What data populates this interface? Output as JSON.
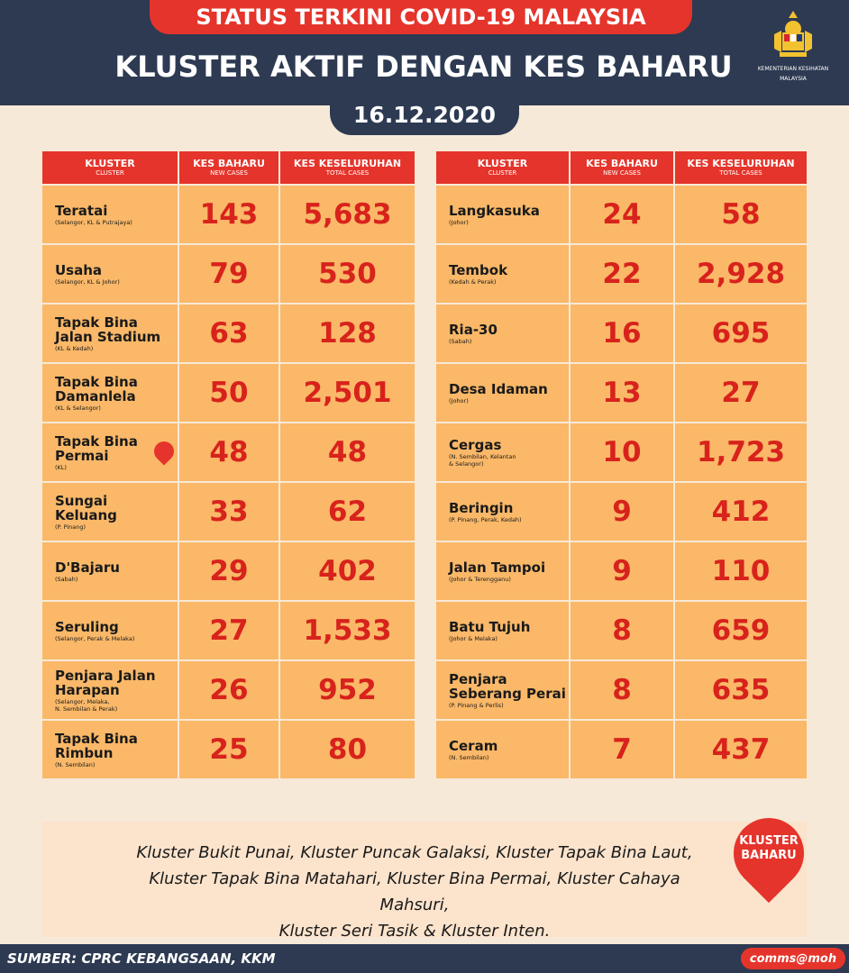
{
  "header": {
    "banner": "STATUS TERKINI COVID-19 MALAYSIA",
    "title": "KLUSTER AKTIF DENGAN KES BAHARU",
    "date": "16.12.2020",
    "logo_text_1": "KEMENTERIAN KESIHATAN",
    "logo_text_2": "MALAYSIA"
  },
  "columns": {
    "cluster": "KLUSTER",
    "cluster_sub": "CLUSTER",
    "new": "KES BAHARU",
    "new_sub": "NEW CASES",
    "total": "KES KESELURUHAN",
    "total_sub": "TOTAL CASES"
  },
  "left_rows": [
    {
      "name": "Teratai",
      "loc": "(Selangor, KL & Putrajaya)",
      "new": "143",
      "total": "5,683"
    },
    {
      "name": "Usaha",
      "loc": "(Selangor, KL & Johor)",
      "new": "79",
      "total": "530"
    },
    {
      "name": "Tapak Bina\nJalan Stadium",
      "loc": "(KL & Kedah)",
      "new": "63",
      "total": "128"
    },
    {
      "name": "Tapak Bina\nDamanlela",
      "loc": "(KL & Selangor)",
      "new": "50",
      "total": "2,501"
    },
    {
      "name": "Tapak  Bina\nPermai",
      "loc": "(KL)",
      "new": "48",
      "total": "48",
      "badge": true
    },
    {
      "name": "Sungai\nKeluang",
      "loc": "(P. Pinang)",
      "new": "33",
      "total": "62"
    },
    {
      "name": "D'Bajaru",
      "loc": "(Sabah)",
      "new": "29",
      "total": "402"
    },
    {
      "name": "Seruling",
      "loc": "(Selangor, Perak & Melaka)",
      "new": "27",
      "total": "1,533"
    },
    {
      "name": "Penjara Jalan\nHarapan",
      "loc": "(Selangor, Melaka,\nN. Sembilan & Perak)",
      "new": "26",
      "total": "952"
    },
    {
      "name": "Tapak Bina\nRimbun",
      "loc": "(N. Sembilan)",
      "new": "25",
      "total": "80"
    }
  ],
  "right_rows": [
    {
      "name": "Langkasuka",
      "loc": "(Johor)",
      "new": "24",
      "total": "58"
    },
    {
      "name": "Tembok",
      "loc": "(Kedah & Perak)",
      "new": "22",
      "total": "2,928"
    },
    {
      "name": "Ria-30",
      "loc": "(Sabah)",
      "new": "16",
      "total": "695"
    },
    {
      "name": "Desa Idaman",
      "loc": "(Johor)",
      "new": "13",
      "total": "27"
    },
    {
      "name": "Cergas",
      "loc": "(N. Sembilan, Kelantan\n& Selangor)",
      "new": "10",
      "total": "1,723"
    },
    {
      "name": "Beringin",
      "loc": "(P. Pinang, Perak, Kedah)",
      "new": "9",
      "total": "412"
    },
    {
      "name": "Jalan Tampoi",
      "loc": "(Johor & Terengganu)",
      "new": "9",
      "total": "110"
    },
    {
      "name": "Batu Tujuh",
      "loc": "(Johor & Melaka)",
      "new": "8",
      "total": "659"
    },
    {
      "name": "Penjara\nSeberang Perai",
      "loc": "(P. Pinang & Perlis)",
      "new": "8",
      "total": "635"
    },
    {
      "name": "Ceram",
      "loc": "(N. Sembilan)",
      "new": "7",
      "total": "437"
    }
  ],
  "note": {
    "line1": "Kluster Bukit Punai, Kluster Puncak Galaksi, Kluster Tapak Bina Laut,",
    "line2": "Kluster Tapak Bina Matahari, Kluster Bina Permai, Kluster Cahaya Mahsuri,",
    "line3": "Kluster Seri Tasik & Kluster Inten.",
    "badge_line1": "KLUSTER",
    "badge_line2": "BAHARU"
  },
  "footer": {
    "source": "SUMBER: CPRC KEBANGSAAN, KKM",
    "handle": "comms@moh"
  },
  "colors": {
    "navy": "#2d3a52",
    "red": "#e5342b",
    "cell_orange": "#fab868",
    "background": "#f7e9d8"
  }
}
